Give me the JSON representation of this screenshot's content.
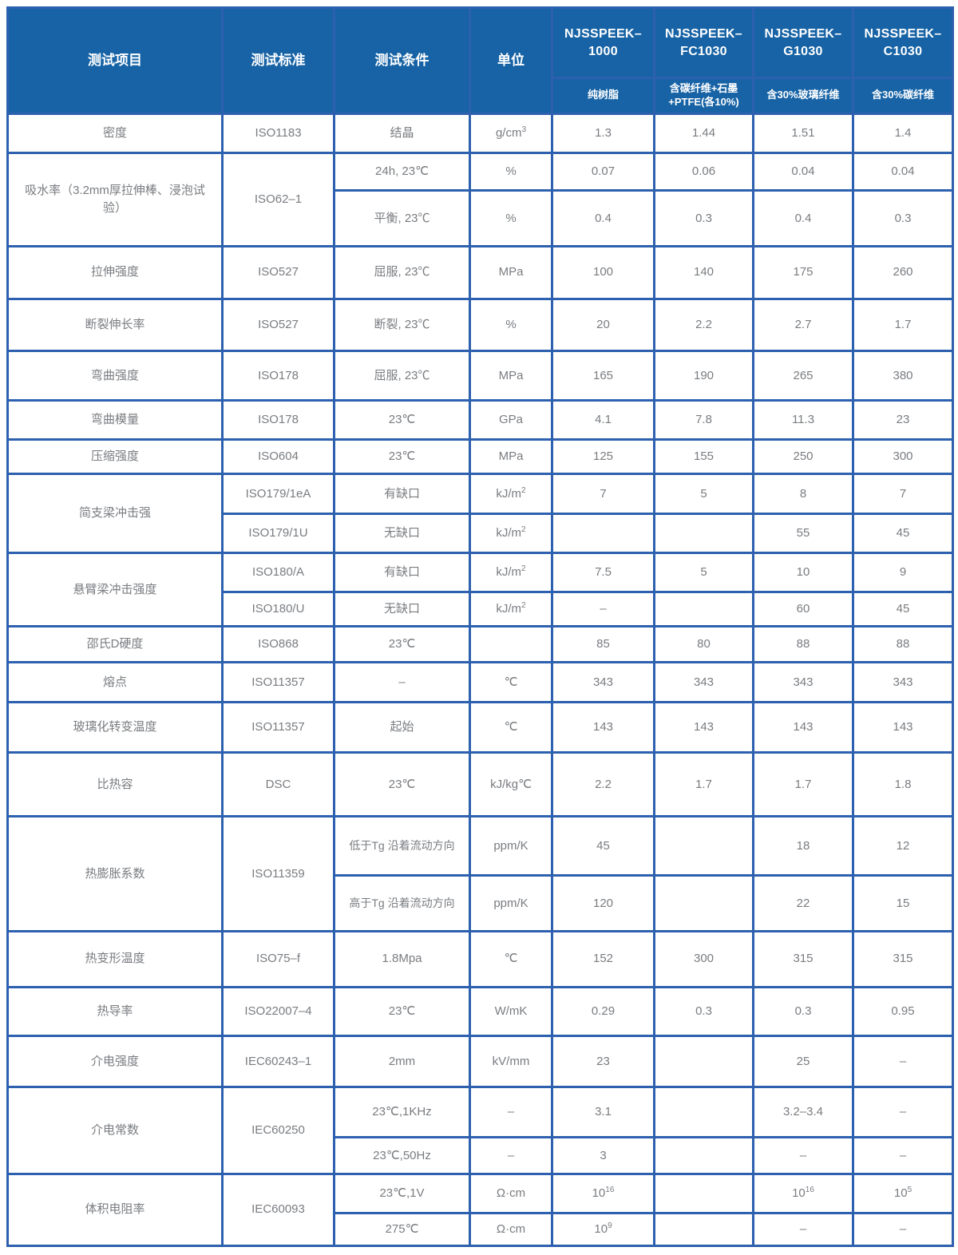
{
  "colors": {
    "header_bg": "#1763a5",
    "border_blue": "#2d60ae",
    "header_divider": "#3f4b9e",
    "body_text": "#797c80",
    "header_text": "#ffffff"
  },
  "header": {
    "col_headers": [
      "测试项目",
      "测试标准",
      "测试条件",
      "单位"
    ],
    "products": [
      {
        "name": "NJSSPEEK–1000",
        "desc": "纯树脂"
      },
      {
        "name": "NJSSPEEK–FC1030",
        "desc": "含碳纤维+石墨+PTFE(各10%)"
      },
      {
        "name": "NJSSPEEK–G1030",
        "desc": "含30%玻璃纤维"
      },
      {
        "name": "NJSSPEEK–C1030",
        "desc": "含30%碳纤维"
      }
    ]
  },
  "rows": [
    {
      "item": "密度",
      "standard": "ISO1183",
      "condition": "结晶",
      "unit": "g/cm^3",
      "values": [
        "1.3",
        "1.44",
        "1.51",
        "1.4"
      ]
    },
    {
      "item": "吸水率（3.2mm厚拉伸棒、浸泡试验）",
      "standard": "ISO62–1",
      "condition": "24h, 23℃",
      "unit": "%",
      "values": [
        "0.07",
        "0.06",
        "0.04",
        "0.04"
      ]
    },
    {
      "condition": "平衡, 23℃",
      "unit": "%",
      "values": [
        "0.4",
        "0.3",
        "0.4",
        "0.3"
      ]
    },
    {
      "item": "拉伸强度",
      "standard": "ISO527",
      "condition": "屈服, 23℃",
      "unit": "MPa",
      "values": [
        "100",
        "140",
        "175",
        "260"
      ]
    },
    {
      "item": "断裂伸长率",
      "standard": "ISO527",
      "condition": "断裂, 23℃",
      "unit": "%",
      "values": [
        "20",
        "2.2",
        "2.7",
        "1.7"
      ]
    },
    {
      "item": "弯曲强度",
      "standard": "ISO178",
      "condition": "屈服, 23℃",
      "unit": "MPa",
      "values": [
        "165",
        "190",
        "265",
        "380"
      ]
    },
    {
      "item": "弯曲模量",
      "standard": "ISO178",
      "condition": "23℃",
      "unit": "GPa",
      "values": [
        "4.1",
        "7.8",
        "11.3",
        "23"
      ]
    },
    {
      "item": "压缩强度",
      "standard": "ISO604",
      "condition": "23℃",
      "unit": "MPa",
      "values": [
        "125",
        "155",
        "250",
        "300"
      ]
    },
    {
      "item": "简支梁冲击强",
      "standard": "ISO179/1eA",
      "condition": "有缺口",
      "unit": "kJ/m^2",
      "values": [
        "7",
        "5",
        "8",
        "7"
      ]
    },
    {
      "standard": "ISO179/1U",
      "condition": "无缺口",
      "unit": "kJ/m^2",
      "values": [
        "",
        "",
        "55",
        "45"
      ]
    },
    {
      "item": "悬臂梁冲击强度",
      "standard": "ISO180/A",
      "condition": "有缺口",
      "unit": "kJ/m^2",
      "values": [
        "7.5",
        "5",
        "10",
        "9"
      ]
    },
    {
      "standard": "ISO180/U",
      "condition": "无缺口",
      "unit": "kJ/m^2",
      "values": [
        "–",
        "",
        "60",
        "45"
      ]
    },
    {
      "item": "邵氏D硬度",
      "standard": "ISO868",
      "condition": "23℃",
      "unit": "",
      "values": [
        "85",
        "80",
        "88",
        "88"
      ]
    },
    {
      "item": "熔点",
      "standard": "ISO11357",
      "condition": "–",
      "unit": "℃",
      "values": [
        "343",
        "343",
        "343",
        "343"
      ]
    },
    {
      "item": "玻璃化转变温度",
      "standard": "ISO11357",
      "condition": "起始",
      "unit": "℃",
      "values": [
        "143",
        "143",
        "143",
        "143"
      ]
    },
    {
      "item": "比热容",
      "standard": "DSC",
      "condition": "23℃",
      "unit": "kJ/kg℃",
      "values": [
        "2.2",
        "1.7",
        "1.7",
        "1.8"
      ]
    },
    {
      "item": "热膨胀系数",
      "standard": "ISO11359",
      "condition": "低于Tg 沿着流动方向",
      "unit": "ppm/K",
      "values": [
        "45",
        "",
        "18",
        "12"
      ]
    },
    {
      "condition": "高于Tg 沿着流动方向",
      "unit": "ppm/K",
      "values": [
        "120",
        "",
        "22",
        "15"
      ]
    },
    {
      "item": "热变形温度",
      "standard": "ISO75–f",
      "condition": "1.8Mpa",
      "unit": "℃",
      "values": [
        "152",
        "300",
        "315",
        "315"
      ]
    },
    {
      "item": "热导率",
      "standard": "ISO22007–4",
      "condition": "23℃",
      "unit": "W/mK",
      "values": [
        "0.29",
        "0.3",
        "0.3",
        "0.95"
      ]
    },
    {
      "item": "介电强度",
      "standard": "IEC60243–1",
      "condition": "2mm",
      "unit": "kV/mm",
      "values": [
        "23",
        "",
        "25",
        "–"
      ]
    },
    {
      "item": "介电常数",
      "standard": "IEC60250",
      "condition": "23℃,1KHz",
      "unit": "–",
      "values": [
        "3.1",
        "",
        "3.2–3.4",
        "–"
      ]
    },
    {
      "condition": "23℃,50Hz",
      "unit": "–",
      "values": [
        "3",
        "",
        "–",
        "–"
      ]
    },
    {
      "item": "体积电阻率",
      "standard": "IEC60093",
      "condition": "23℃,1V",
      "unit": "Ω·cm",
      "values": [
        "10^16",
        "",
        "10^16",
        "10^5"
      ]
    },
    {
      "condition": "275℃",
      "unit": "Ω·cm",
      "values": [
        "10^9",
        "",
        "–",
        "–"
      ]
    }
  ]
}
